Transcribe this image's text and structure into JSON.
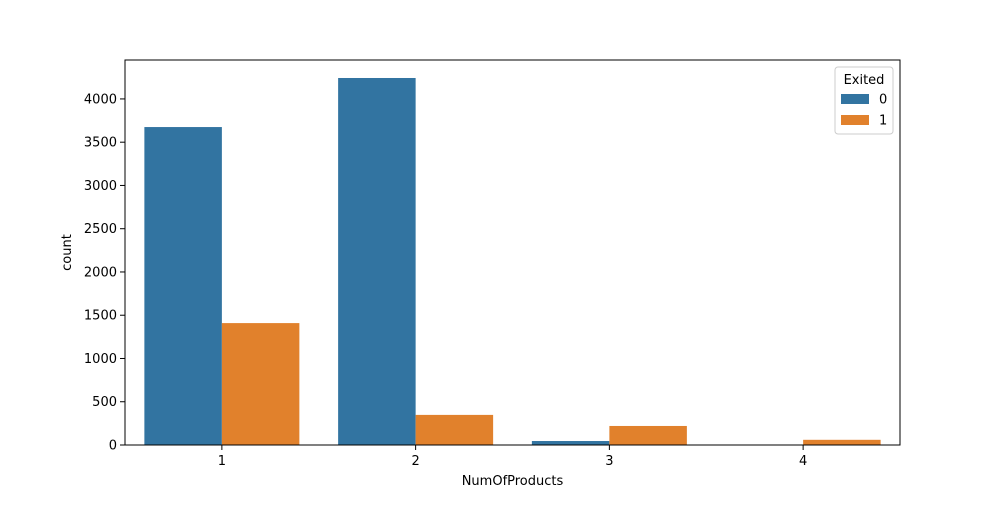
{
  "chart_data": {
    "type": "bar",
    "xlabel": "NumOfProducts",
    "ylabel": "count",
    "categories": [
      "1",
      "2",
      "3",
      "4"
    ],
    "ylim": [
      0,
      4450
    ],
    "yticks": [
      0,
      500,
      1000,
      1500,
      2000,
      2500,
      3000,
      3500,
      4000
    ],
    "grid": false,
    "legend": {
      "title": "Exited",
      "placement": "top-right"
    },
    "series": [
      {
        "name": "0",
        "color": "#3274a1",
        "values": [
          3675,
          4242,
          46,
          0
        ]
      },
      {
        "name": "1",
        "color": "#e1812c",
        "values": [
          1409,
          348,
          220,
          60
        ]
      }
    ]
  }
}
